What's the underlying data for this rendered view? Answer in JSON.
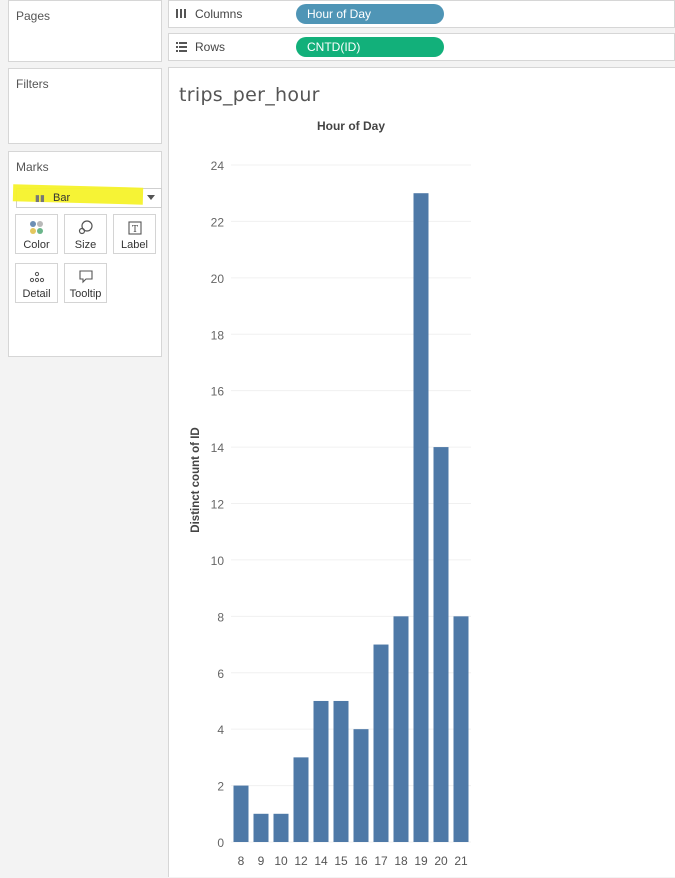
{
  "cards": {
    "pages_title": "Pages",
    "filters_title": "Filters",
    "marks_title": "Marks"
  },
  "shelves": {
    "columns": {
      "label": "Columns",
      "pill": "Hour of Day",
      "pill_color": "#4f95b6",
      "icon": "columns-icon"
    },
    "rows": {
      "label": "Rows",
      "pill": "CNTD(ID)",
      "pill_color": "#12b07a",
      "icon": "rows-icon"
    }
  },
  "marks": {
    "type": "Bar",
    "highlight_color": "#f5f22a",
    "buttons": [
      {
        "label": "Color",
        "icon": "color-icon"
      },
      {
        "label": "Size",
        "icon": "size-icon"
      },
      {
        "label": "Label",
        "icon": "label-icon"
      },
      {
        "label": "Detail",
        "icon": "detail-icon"
      },
      {
        "label": "Tooltip",
        "icon": "tooltip-icon"
      }
    ]
  },
  "sheet": {
    "title": "trips_per_hour"
  },
  "chart_data": {
    "type": "bar",
    "title": "Hour of Day",
    "xlabel": "",
    "ylabel": "Distinct count of ID",
    "categories": [
      "8",
      "9",
      "10",
      "12",
      "14",
      "15",
      "16",
      "17",
      "18",
      "19",
      "20",
      "21"
    ],
    "values": [
      2,
      1,
      1,
      3,
      5,
      5,
      4,
      7,
      8,
      23,
      14,
      8
    ],
    "ylim": [
      0,
      24
    ],
    "yticks": [
      0,
      2,
      4,
      6,
      8,
      10,
      12,
      14,
      16,
      18,
      20,
      22,
      24
    ],
    "bar_color": "#4e79a7",
    "grid": true
  }
}
